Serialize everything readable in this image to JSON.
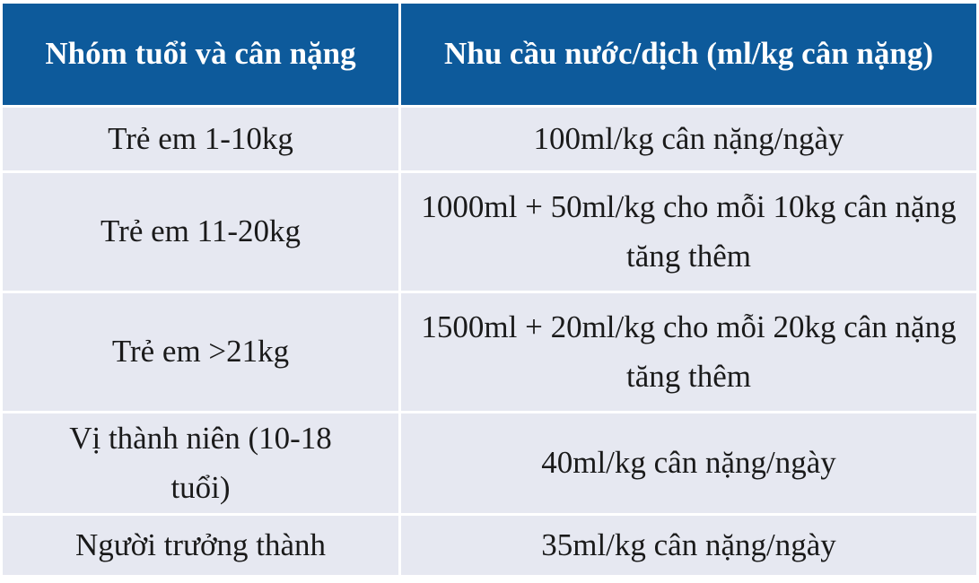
{
  "table": {
    "header": [
      "Nhóm tuổi và cân nặng",
      "Nhu cầu nước/dịch (ml/kg cân nặng)"
    ],
    "rows": [
      [
        "Trẻ em 1-10kg",
        "100ml/kg cân nặng/ngày"
      ],
      [
        "Trẻ em 11-20kg",
        "1000ml + 50ml/kg cho mỗi 10kg cân nặng tăng thêm"
      ],
      [
        "Trẻ em >21kg",
        "1500ml + 20ml/kg cho mỗi 20kg cân nặng tăng thêm"
      ],
      [
        "Vị thành niên (10-18 tuổi)",
        "40ml/kg cân nặng/ngày"
      ],
      [
        "Người trưởng thành",
        "35ml/kg cân nặng/ngày"
      ]
    ]
  }
}
